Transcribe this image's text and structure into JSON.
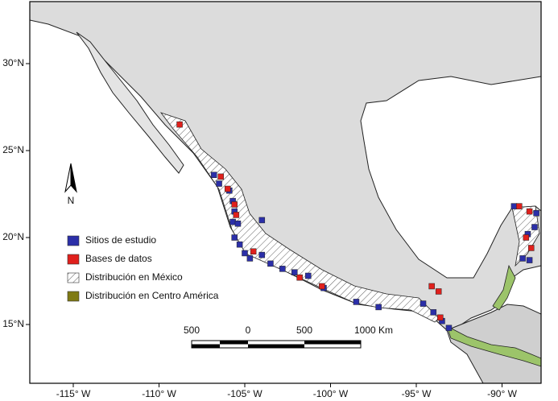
{
  "map": {
    "xticks": [
      {
        "value": -115,
        "label": "-115° W"
      },
      {
        "value": -110,
        "label": "-110° W"
      },
      {
        "value": -105,
        "label": "-105° W"
      },
      {
        "value": -100,
        "label": "-100° W"
      },
      {
        "value": -95,
        "label": "-95° W"
      },
      {
        "value": -90,
        "label": "-90° W"
      }
    ],
    "yticks": [
      {
        "value": 30,
        "label": "30°N"
      },
      {
        "value": 25,
        "label": "25°N"
      },
      {
        "value": 20,
        "label": "20°N"
      },
      {
        "value": 15,
        "label": "15°N"
      }
    ],
    "north": "N",
    "legend": [
      {
        "label": "Sitios de estudio",
        "color": "#2b2fa8"
      },
      {
        "label": "Bases de datos",
        "color": "#e0201c"
      },
      {
        "label": "Distribución en México"
      },
      {
        "label": "Distribución en Centro América",
        "color": "#7f7a14"
      }
    ],
    "scale_bar": {
      "labels": [
        "500",
        "0",
        "500",
        "1000 Km"
      ]
    },
    "sites": {
      "lon": [
        -106.8,
        -106.5,
        -105.9,
        -105.7,
        -105.6,
        -105.7,
        -105.4,
        -105.6,
        -105.3,
        -105.0,
        -104.7,
        -104.0,
        -103.5,
        -102.8,
        -102.1,
        -101.3,
        -100.4,
        -98.5,
        -97.2,
        -94.6,
        -94.0,
        -93.5,
        -93.1,
        -89.3,
        -88.0,
        -88.1,
        -88.5,
        -88.8,
        -88.4,
        -104.0
      ],
      "lat": [
        23.6,
        23.1,
        22.7,
        22.1,
        21.5,
        20.9,
        20.8,
        20.0,
        19.6,
        19.1,
        18.8,
        19.0,
        18.5,
        18.2,
        18.0,
        17.8,
        17.1,
        16.3,
        16.0,
        16.2,
        15.7,
        15.2,
        14.8,
        21.8,
        21.4,
        20.6,
        20.2,
        18.8,
        18.7,
        21.0
      ]
    },
    "databases": {
      "lon": [
        -108.8,
        -106.4,
        -106.0,
        -105.6,
        -105.5,
        -104.5,
        -101.8,
        -100.5,
        -94.1,
        -93.7,
        -93.6,
        -89.0,
        -88.4,
        -88.6,
        -88.3
      ],
      "lat": [
        26.5,
        23.5,
        22.8,
        21.9,
        21.3,
        19.2,
        17.7,
        17.2,
        17.2,
        16.9,
        15.4,
        21.8,
        21.5,
        20.0,
        19.4
      ]
    }
  }
}
